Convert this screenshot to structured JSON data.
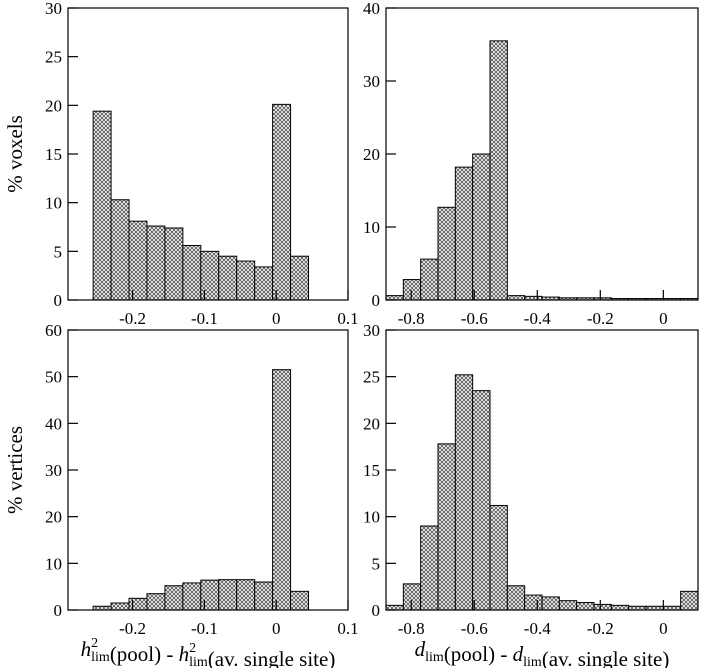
{
  "chart_data": [
    {
      "type": "histogram",
      "ylabel": "% voxels",
      "color": "#8c8c8c",
      "bins": [
        -0.255,
        -0.23,
        -0.205,
        -0.18,
        -0.155,
        -0.13,
        -0.105,
        -0.08,
        -0.055,
        -0.03,
        -0.005,
        0.02,
        0.045
      ],
      "values": [
        19.4,
        10.3,
        8.1,
        7.6,
        7.4,
        5.6,
        5.0,
        4.5,
        4.0,
        3.4,
        20.1,
        4.5
      ],
      "xlim": [
        -0.29,
        0.1
      ],
      "xticks": [
        -0.2,
        -0.1,
        0,
        0.1
      ],
      "ylim": [
        0,
        30
      ],
      "yticks": [
        0,
        5,
        10,
        15,
        20,
        25,
        30
      ]
    },
    {
      "type": "histogram",
      "color": "#8c8c8c",
      "bins": [
        -0.88,
        -0.825,
        -0.77,
        -0.715,
        -0.66,
        -0.605,
        -0.55,
        -0.495,
        -0.44,
        -0.385,
        -0.33,
        -0.275,
        -0.22,
        -0.165,
        -0.11,
        -0.055,
        0,
        0.055,
        0.11
      ],
      "values": [
        0.6,
        2.8,
        5.6,
        12.7,
        18.2,
        20.0,
        35.5,
        0.6,
        0.5,
        0.4,
        0.3,
        0.3,
        0.3,
        0.2,
        0.2,
        0.2,
        0.2,
        0.2
      ],
      "xlim": [
        -0.88,
        0.11
      ],
      "xticks": [
        -0.8,
        -0.6,
        -0.4,
        -0.2,
        0
      ],
      "ylim": [
        0,
        40
      ],
      "yticks": [
        0,
        10,
        20,
        30,
        40
      ]
    },
    {
      "type": "histogram",
      "ylabel": "% vertices",
      "color": "#8c8c8c",
      "xlabel": [
        {
          "text": "h",
          "sup": "2",
          "sub": "lim"
        },
        {
          "text": "(pool) - "
        },
        {
          "text": "h",
          "sup": "2",
          "sub": "lim"
        },
        {
          "text": "(av. single site)"
        }
      ],
      "bins": [
        -0.255,
        -0.23,
        -0.205,
        -0.18,
        -0.155,
        -0.13,
        -0.105,
        -0.08,
        -0.055,
        -0.03,
        -0.005,
        0.02,
        0.045
      ],
      "values": [
        0.8,
        1.5,
        2.5,
        3.5,
        5.2,
        5.8,
        6.4,
        6.5,
        6.5,
        6.0,
        51.5,
        4.0
      ],
      "xlim": [
        -0.29,
        0.1
      ],
      "xticks": [
        -0.2,
        -0.1,
        0,
        0.1
      ],
      "ylim": [
        0,
        60
      ],
      "yticks": [
        0,
        10,
        20,
        30,
        40,
        50,
        60
      ]
    },
    {
      "type": "histogram",
      "color": "#8c8c8c",
      "xlabel": [
        {
          "text": "d",
          "sub": "lim"
        },
        {
          "text": "(pool) - "
        },
        {
          "text": "d",
          "sub": "lim"
        },
        {
          "text": "(av. single site)"
        }
      ],
      "bins": [
        -0.88,
        -0.825,
        -0.77,
        -0.715,
        -0.66,
        -0.605,
        -0.55,
        -0.495,
        -0.44,
        -0.385,
        -0.33,
        -0.275,
        -0.22,
        -0.165,
        -0.11,
        -0.055,
        0,
        0.055,
        0.11
      ],
      "values": [
        0.5,
        2.8,
        9.0,
        17.8,
        25.2,
        23.5,
        11.2,
        2.6,
        1.6,
        1.4,
        1.0,
        0.8,
        0.6,
        0.5,
        0.4,
        0.4,
        0.4,
        2.0
      ],
      "xlim": [
        -0.88,
        0.11
      ],
      "xticks": [
        -0.8,
        -0.6,
        -0.4,
        -0.2,
        0
      ],
      "ylim": [
        0,
        30
      ],
      "yticks": [
        0,
        5,
        10,
        15,
        20,
        25,
        30
      ]
    }
  ]
}
